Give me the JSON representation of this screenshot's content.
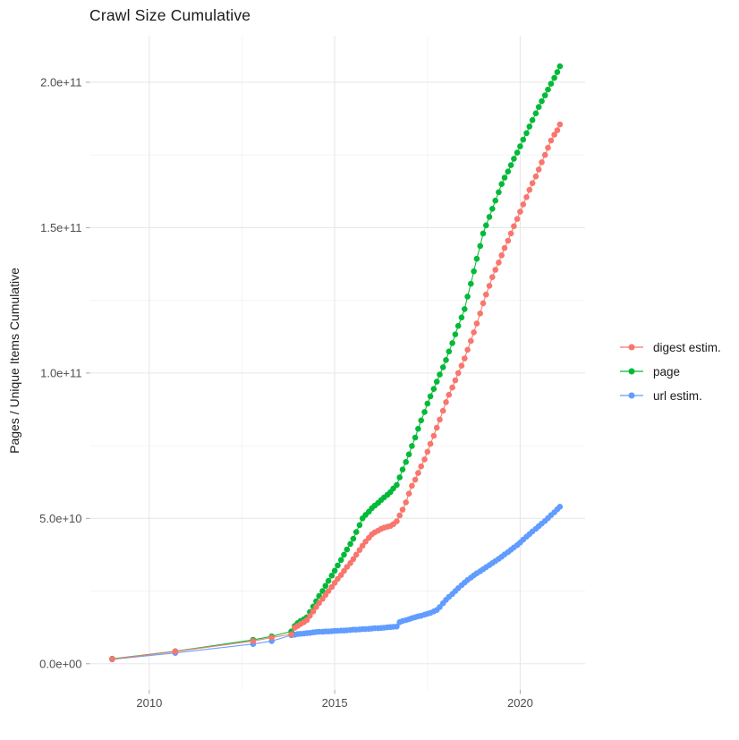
{
  "chart_data": {
    "type": "scatter",
    "title": "Crawl Size Cumulative",
    "xlabel": "",
    "ylabel": "Pages / Unique Items Cumulative",
    "legend_position": "right",
    "grid": true,
    "values_scale": 1000000000.0,
    "xlim": [
      2008.4,
      2021.75
    ],
    "ylim_e9": [
      -9,
      216
    ],
    "x_ticks": [
      {
        "value": 2010,
        "label": "2010"
      },
      {
        "value": 2015,
        "label": "2015"
      },
      {
        "value": 2020,
        "label": "2020"
      }
    ],
    "x_minor": [
      2012.5,
      2017.5
    ],
    "y_ticks": [
      {
        "value": 0,
        "label": "0.0e+00"
      },
      {
        "value": 50,
        "label": "5.0e+10"
      },
      {
        "value": 100,
        "label": "1.0e+11"
      },
      {
        "value": 150,
        "label": "1.5e+11"
      },
      {
        "value": 200,
        "label": "2.0e+11"
      }
    ],
    "y_minor": [
      25,
      75,
      125,
      175
    ],
    "series": [
      {
        "name": "digest estim.",
        "color": "#F8766D",
        "points": [
          [
            2009.0,
            1.6
          ],
          [
            2010.7,
            4.2
          ],
          [
            2012.8,
            7.8
          ],
          [
            2013.3,
            9.0
          ],
          [
            2013.83,
            10.1
          ],
          [
            2013.92,
            12.4
          ],
          [
            2014.0,
            13.0
          ],
          [
            2014.08,
            13.7
          ],
          [
            2014.17,
            14.3
          ],
          [
            2014.25,
            15.0
          ],
          [
            2014.33,
            16.5
          ],
          [
            2014.42,
            18.0
          ],
          [
            2014.5,
            19.5
          ],
          [
            2014.58,
            20.9
          ],
          [
            2014.67,
            22.3
          ],
          [
            2014.75,
            23.7
          ],
          [
            2014.83,
            25.0
          ],
          [
            2014.92,
            26.4
          ],
          [
            2015.0,
            27.8
          ],
          [
            2015.08,
            29.2
          ],
          [
            2015.17,
            30.5
          ],
          [
            2015.25,
            31.9
          ],
          [
            2015.33,
            33.3
          ],
          [
            2015.42,
            34.6
          ],
          [
            2015.5,
            36.0
          ],
          [
            2015.58,
            37.5
          ],
          [
            2015.67,
            39.1
          ],
          [
            2015.75,
            40.6
          ],
          [
            2015.83,
            42.0
          ],
          [
            2015.92,
            43.3
          ],
          [
            2016.0,
            44.5
          ],
          [
            2016.08,
            45.2
          ],
          [
            2016.17,
            45.8
          ],
          [
            2016.25,
            46.4
          ],
          [
            2016.33,
            46.8
          ],
          [
            2016.42,
            47.1
          ],
          [
            2016.5,
            47.4
          ],
          [
            2016.58,
            48.0
          ],
          [
            2016.67,
            49.0
          ],
          [
            2016.75,
            51.0
          ],
          [
            2016.83,
            53.0
          ],
          [
            2016.92,
            55.5
          ],
          [
            2017.0,
            58.5
          ],
          [
            2017.08,
            61.2
          ],
          [
            2017.17,
            63.3
          ],
          [
            2017.25,
            65.6
          ],
          [
            2017.33,
            67.9
          ],
          [
            2017.42,
            70.3
          ],
          [
            2017.5,
            72.9
          ],
          [
            2017.58,
            75.6
          ],
          [
            2017.67,
            78.4
          ],
          [
            2017.75,
            81.2
          ],
          [
            2017.83,
            84.0
          ],
          [
            2017.92,
            87.0
          ],
          [
            2018.0,
            90.0
          ],
          [
            2018.08,
            92.5
          ],
          [
            2018.17,
            95.0
          ],
          [
            2018.25,
            97.5
          ],
          [
            2018.33,
            100.0
          ],
          [
            2018.42,
            102.5
          ],
          [
            2018.5,
            105.0
          ],
          [
            2018.58,
            108.0
          ],
          [
            2018.67,
            111.0
          ],
          [
            2018.75,
            114.0
          ],
          [
            2018.83,
            117.0
          ],
          [
            2018.92,
            120.5
          ],
          [
            2019.0,
            124.0
          ],
          [
            2019.08,
            127.0
          ],
          [
            2019.17,
            130.0
          ],
          [
            2019.25,
            133.0
          ],
          [
            2019.33,
            135.5
          ],
          [
            2019.42,
            138.0
          ],
          [
            2019.5,
            140.5
          ],
          [
            2019.58,
            143.0
          ],
          [
            2019.67,
            145.5
          ],
          [
            2019.75,
            148.0
          ],
          [
            2019.83,
            150.5
          ],
          [
            2019.92,
            153.0
          ],
          [
            2020.0,
            155.5
          ],
          [
            2020.08,
            158.0
          ],
          [
            2020.17,
            160.5
          ],
          [
            2020.25,
            163.0
          ],
          [
            2020.33,
            165.3
          ],
          [
            2020.42,
            167.6
          ],
          [
            2020.5,
            170.0
          ],
          [
            2020.58,
            172.5
          ],
          [
            2020.67,
            175.0
          ],
          [
            2020.75,
            177.5
          ],
          [
            2020.83,
            180.0
          ],
          [
            2020.92,
            182.0
          ],
          [
            2021.0,
            183.5
          ],
          [
            2021.07,
            185.5
          ]
        ]
      },
      {
        "name": "page",
        "color": "#00BA38",
        "points": [
          [
            2009.0,
            1.7
          ],
          [
            2010.7,
            4.3
          ],
          [
            2012.8,
            8.2
          ],
          [
            2013.3,
            9.4
          ],
          [
            2013.83,
            11.1
          ],
          [
            2013.92,
            13.0
          ],
          [
            2014.0,
            14.0
          ],
          [
            2014.08,
            14.7
          ],
          [
            2014.17,
            15.3
          ],
          [
            2014.25,
            16.0
          ],
          [
            2014.33,
            17.8
          ],
          [
            2014.42,
            19.7
          ],
          [
            2014.5,
            21.5
          ],
          [
            2014.58,
            23.3
          ],
          [
            2014.67,
            25.0
          ],
          [
            2014.75,
            26.8
          ],
          [
            2014.83,
            28.5
          ],
          [
            2014.92,
            30.3
          ],
          [
            2015.0,
            32.0
          ],
          [
            2015.08,
            33.8
          ],
          [
            2015.17,
            35.7
          ],
          [
            2015.25,
            37.5
          ],
          [
            2015.33,
            39.3
          ],
          [
            2015.42,
            41.2
          ],
          [
            2015.5,
            43.0
          ],
          [
            2015.58,
            45.3
          ],
          [
            2015.67,
            47.7
          ],
          [
            2015.75,
            50.0
          ],
          [
            2015.83,
            51.2
          ],
          [
            2015.92,
            52.3
          ],
          [
            2016.0,
            53.5
          ],
          [
            2016.08,
            54.4
          ],
          [
            2016.17,
            55.3
          ],
          [
            2016.25,
            56.3
          ],
          [
            2016.33,
            57.2
          ],
          [
            2016.42,
            58.1
          ],
          [
            2016.5,
            59.0
          ],
          [
            2016.58,
            60.3
          ],
          [
            2016.67,
            61.5
          ],
          [
            2016.75,
            64.1
          ],
          [
            2016.83,
            66.8
          ],
          [
            2016.92,
            69.4
          ],
          [
            2017.0,
            72.0
          ],
          [
            2017.08,
            74.9
          ],
          [
            2017.17,
            77.8
          ],
          [
            2017.25,
            80.8
          ],
          [
            2017.33,
            83.7
          ],
          [
            2017.42,
            86.6
          ],
          [
            2017.5,
            89.5
          ],
          [
            2017.58,
            92.0
          ],
          [
            2017.67,
            94.5
          ],
          [
            2017.75,
            97.0
          ],
          [
            2017.83,
            99.5
          ],
          [
            2017.92,
            102.0
          ],
          [
            2018.0,
            104.5
          ],
          [
            2018.08,
            107.4
          ],
          [
            2018.17,
            110.3
          ],
          [
            2018.25,
            113.3
          ],
          [
            2018.33,
            116.2
          ],
          [
            2018.42,
            119.1
          ],
          [
            2018.5,
            122.0
          ],
          [
            2018.58,
            126.3
          ],
          [
            2018.67,
            130.7
          ],
          [
            2018.75,
            135.0
          ],
          [
            2018.83,
            139.3
          ],
          [
            2018.92,
            143.7
          ],
          [
            2019.0,
            148.0
          ],
          [
            2019.08,
            150.8
          ],
          [
            2019.17,
            153.7
          ],
          [
            2019.25,
            156.5
          ],
          [
            2019.33,
            159.3
          ],
          [
            2019.42,
            162.2
          ],
          [
            2019.5,
            165.0
          ],
          [
            2019.58,
            167.2
          ],
          [
            2019.67,
            169.3
          ],
          [
            2019.75,
            171.5
          ],
          [
            2019.83,
            173.7
          ],
          [
            2019.92,
            175.8
          ],
          [
            2020.0,
            178.0
          ],
          [
            2020.08,
            180.3
          ],
          [
            2020.17,
            182.5
          ],
          [
            2020.25,
            184.8
          ],
          [
            2020.33,
            187.0
          ],
          [
            2020.42,
            189.3
          ],
          [
            2020.5,
            191.5
          ],
          [
            2020.58,
            193.5
          ],
          [
            2020.67,
            195.5
          ],
          [
            2020.75,
            197.5
          ],
          [
            2020.83,
            199.5
          ],
          [
            2020.92,
            201.5
          ],
          [
            2021.0,
            203.5
          ],
          [
            2021.07,
            205.5
          ]
        ]
      },
      {
        "name": "url estim.",
        "color": "#619CFF",
        "points": [
          [
            2009.0,
            1.5
          ],
          [
            2010.7,
            3.7
          ],
          [
            2012.8,
            6.8
          ],
          [
            2013.3,
            7.8
          ],
          [
            2013.83,
            9.8
          ],
          [
            2013.92,
            10.0
          ],
          [
            2014.0,
            10.2
          ],
          [
            2014.08,
            10.3
          ],
          [
            2014.17,
            10.4
          ],
          [
            2014.25,
            10.5
          ],
          [
            2014.33,
            10.6
          ],
          [
            2014.42,
            10.8
          ],
          [
            2014.5,
            10.9
          ],
          [
            2014.58,
            11.0
          ],
          [
            2014.67,
            11.0
          ],
          [
            2014.75,
            11.1
          ],
          [
            2014.83,
            11.1
          ],
          [
            2014.92,
            11.2
          ],
          [
            2015.0,
            11.3
          ],
          [
            2015.08,
            11.3
          ],
          [
            2015.17,
            11.4
          ],
          [
            2015.25,
            11.4
          ],
          [
            2015.33,
            11.5
          ],
          [
            2015.42,
            11.6
          ],
          [
            2015.5,
            11.7
          ],
          [
            2015.58,
            11.7
          ],
          [
            2015.67,
            11.8
          ],
          [
            2015.75,
            11.9
          ],
          [
            2015.83,
            11.9
          ],
          [
            2015.92,
            12.0
          ],
          [
            2016.0,
            12.1
          ],
          [
            2016.08,
            12.2
          ],
          [
            2016.17,
            12.2
          ],
          [
            2016.25,
            12.3
          ],
          [
            2016.33,
            12.4
          ],
          [
            2016.42,
            12.5
          ],
          [
            2016.5,
            12.6
          ],
          [
            2016.58,
            12.7
          ],
          [
            2016.67,
            12.8
          ],
          [
            2016.75,
            14.3
          ],
          [
            2016.83,
            14.7
          ],
          [
            2016.92,
            15.0
          ],
          [
            2017.0,
            15.3
          ],
          [
            2017.08,
            15.7
          ],
          [
            2017.17,
            16.0
          ],
          [
            2017.25,
            16.3
          ],
          [
            2017.33,
            16.5
          ],
          [
            2017.42,
            16.9
          ],
          [
            2017.5,
            17.2
          ],
          [
            2017.58,
            17.5
          ],
          [
            2017.67,
            18.0
          ],
          [
            2017.75,
            18.5
          ],
          [
            2017.83,
            19.5
          ],
          [
            2017.92,
            20.8
          ],
          [
            2018.0,
            22.0
          ],
          [
            2018.08,
            23.0
          ],
          [
            2018.17,
            24.0
          ],
          [
            2018.25,
            25.0
          ],
          [
            2018.33,
            26.0
          ],
          [
            2018.42,
            27.0
          ],
          [
            2018.5,
            27.9
          ],
          [
            2018.58,
            28.8
          ],
          [
            2018.67,
            29.6
          ],
          [
            2018.75,
            30.4
          ],
          [
            2018.83,
            31.1
          ],
          [
            2018.92,
            31.8
          ],
          [
            2019.0,
            32.5
          ],
          [
            2019.08,
            33.2
          ],
          [
            2019.17,
            33.9
          ],
          [
            2019.25,
            34.6
          ],
          [
            2019.33,
            35.3
          ],
          [
            2019.42,
            36.1
          ],
          [
            2019.5,
            36.8
          ],
          [
            2019.58,
            37.6
          ],
          [
            2019.67,
            38.4
          ],
          [
            2019.75,
            39.2
          ],
          [
            2019.83,
            40.0
          ],
          [
            2019.92,
            40.8
          ],
          [
            2020.0,
            41.7
          ],
          [
            2020.08,
            42.7
          ],
          [
            2020.17,
            43.7
          ],
          [
            2020.25,
            44.6
          ],
          [
            2020.33,
            45.5
          ],
          [
            2020.42,
            46.4
          ],
          [
            2020.5,
            47.3
          ],
          [
            2020.58,
            48.2
          ],
          [
            2020.67,
            49.1
          ],
          [
            2020.75,
            50.1
          ],
          [
            2020.83,
            51.1
          ],
          [
            2020.92,
            52.1
          ],
          [
            2021.0,
            53.1
          ],
          [
            2021.07,
            54.0
          ]
        ]
      }
    ]
  }
}
